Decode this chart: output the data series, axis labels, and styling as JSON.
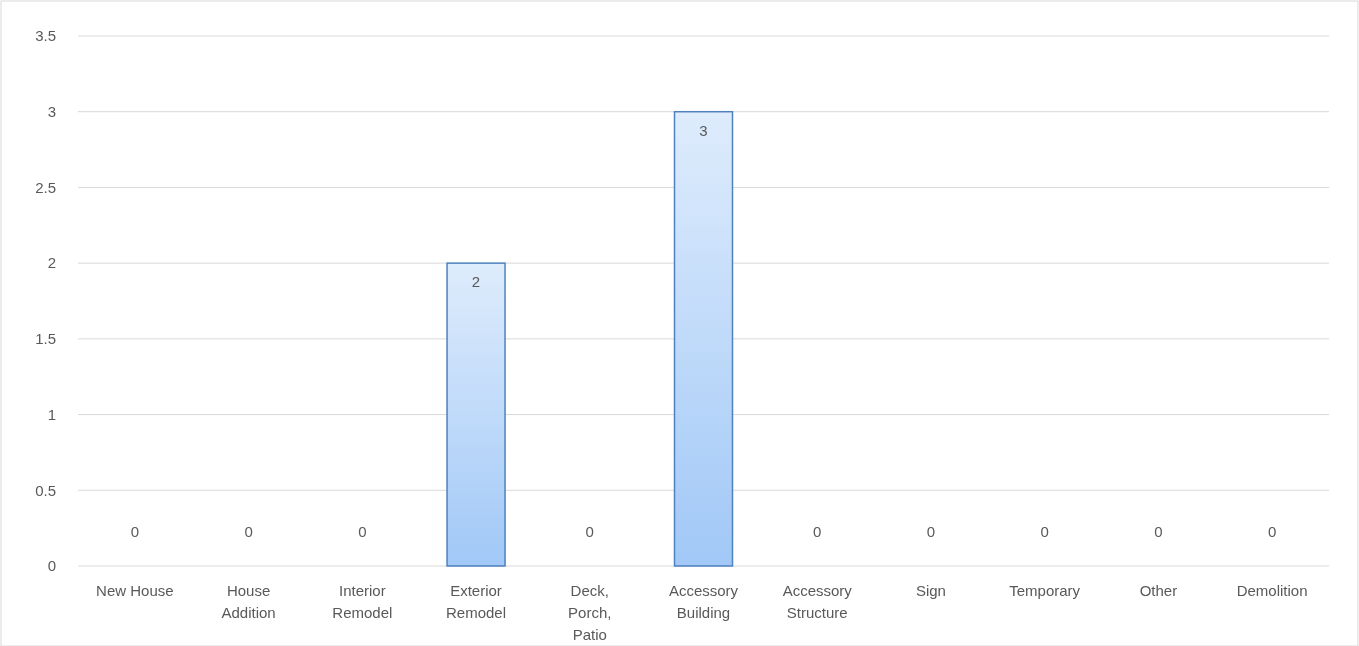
{
  "chart_data": {
    "type": "bar",
    "categories": [
      "New House",
      "House Addition",
      "Interior Remodel",
      "Exterior Remodel",
      "Deck, Porch, Patio",
      "Accessory Building",
      "Accessory Structure",
      "Sign",
      "Temporary",
      "Other",
      "Demolition"
    ],
    "values": [
      0,
      0,
      0,
      2,
      0,
      3,
      0,
      0,
      0,
      0,
      0
    ],
    "color": "#4f81bd",
    "ylim": [
      0,
      3.5
    ],
    "yticks": [
      0,
      0.5,
      1,
      1.5,
      2,
      2.5,
      3,
      3.5
    ],
    "grid": "y",
    "data_labels": true
  }
}
